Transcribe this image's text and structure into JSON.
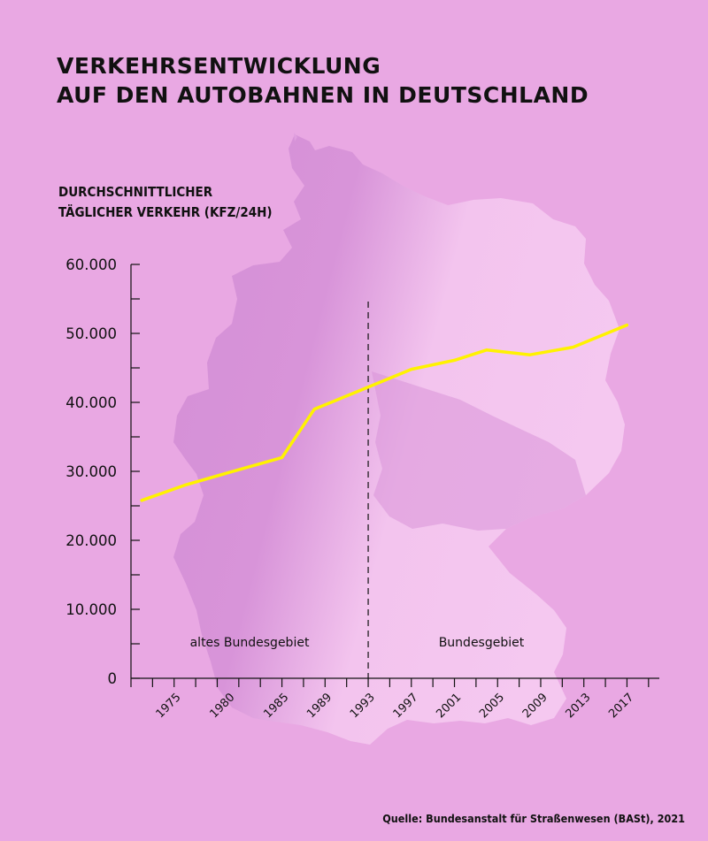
{
  "page": {
    "title_lines": [
      "VERKEHRSENTWICKLUNG",
      "AUF DEN AUTOBAHNEN IN DEUTSCHLAND"
    ],
    "source": "Quelle: Bundesanstalt für Straßenwesen (BASt), 2021",
    "colors": {
      "background": "#e9a8e3",
      "map_dark": "#d48fd6",
      "map_light": "#f3c4ee",
      "line": "#fff200",
      "axis": "#111111"
    },
    "background_graphic": "map-of-germany"
  },
  "chart_data": {
    "type": "line",
    "ylabel_lines": [
      "DURCHSCHNITTLICHER",
      "TÄGLICHER VERKEHR (KFZ/24H)"
    ],
    "xlabel": "",
    "ylim": [
      0,
      60000
    ],
    "xlim": [
      1971,
      2020
    ],
    "yticks": [
      0,
      10000,
      20000,
      30000,
      40000,
      50000,
      60000
    ],
    "ytick_labels": [
      "0",
      "10.000",
      "20.000",
      "30.000",
      "40.000",
      "50.000",
      "60.000"
    ],
    "xticks": [
      1975,
      1980,
      1985,
      1989,
      1993,
      1997,
      2001,
      2005,
      2009,
      2013,
      2017
    ],
    "xtick_labels": [
      "1975",
      "1980",
      "1985",
      "1989",
      "1993",
      "1997",
      "2001",
      "2005",
      "2009",
      "2013",
      "2017"
    ],
    "minor_ytick_step": 5000,
    "minor_xtick_step": 2,
    "grid": false,
    "legend": "none",
    "series": [
      {
        "x": [
          1972,
          1976,
          1980,
          1985,
          1988,
          1993,
          1997,
          2001,
          2004,
          2008,
          2012,
          2017
        ],
        "y": [
          25800,
          28000,
          29800,
          32000,
          39000,
          42200,
          44800,
          46100,
          47600,
          46900,
          48000,
          51200
        ]
      }
    ],
    "annotations": [
      {
        "text": "altes Bundesgebiet",
        "x_mid": 1982
      },
      {
        "text": "Bundesgebiet",
        "x_mid": 2003.5
      }
    ],
    "divider_x": 1993
  }
}
